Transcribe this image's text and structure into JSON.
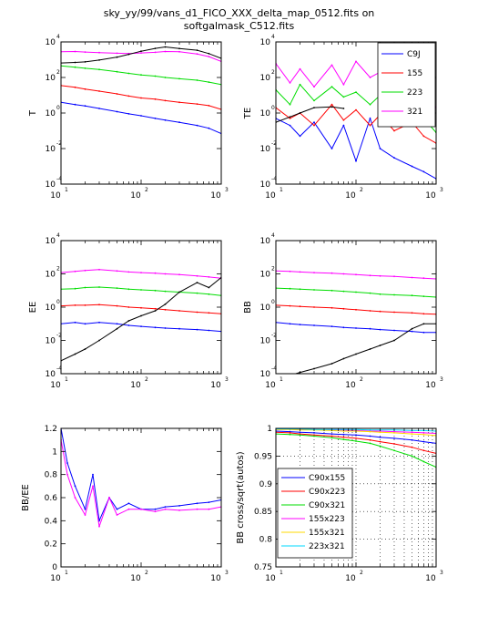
{
  "figure": {
    "title_line1": "sky_yy/99/vans_d1_FICO_XXX_delta_map_0512.fits on",
    "title_line2": "softgalmask_C512.fits"
  },
  "colors": {
    "c090": "#0000ff",
    "c155": "#ff0000",
    "c223": "#00dd00",
    "c321": "#ff00ff",
    "model": "#000000",
    "c155x321": "#ffd800",
    "c223x321": "#00d8ff"
  },
  "chart_data": [
    {
      "panel": "T",
      "type": "line",
      "ylabel": "T",
      "xscale": "log",
      "yscale": "log",
      "xlim": [
        10,
        1000
      ],
      "ylim": [
        0.0001,
        10000
      ],
      "xticks": [
        {
          "v": 10,
          "base": "10",
          "exp": "1"
        },
        {
          "v": 100,
          "base": "10",
          "exp": "2"
        },
        {
          "v": 1000,
          "base": "10",
          "exp": "3"
        }
      ],
      "yticks": [
        {
          "v": 0.0001,
          "base": "10",
          "exp": "-4"
        },
        {
          "v": 0.01,
          "base": "10",
          "exp": "-2"
        },
        {
          "v": 1,
          "base": "10",
          "exp": "0"
        },
        {
          "v": 100,
          "base": "10",
          "exp": "2"
        },
        {
          "v": 10000,
          "base": "10",
          "exp": "4"
        }
      ],
      "x": [
        10,
        15,
        20,
        30,
        50,
        70,
        100,
        150,
        200,
        300,
        500,
        700,
        1000
      ],
      "series": [
        {
          "color_key": "c090",
          "values": [
            4,
            3,
            2.5,
            1.8,
            1.2,
            0.9,
            0.7,
            0.5,
            0.4,
            0.3,
            0.2,
            0.14,
            0.07
          ]
        },
        {
          "color_key": "c155",
          "values": [
            35,
            28,
            22,
            17,
            12,
            9,
            7,
            6,
            5,
            4,
            3.2,
            2.6,
            1.6
          ]
        },
        {
          "color_key": "c223",
          "values": [
            450,
            380,
            330,
            280,
            210,
            170,
            140,
            120,
            100,
            85,
            70,
            55,
            40
          ]
        },
        {
          "color_key": "c321",
          "values": [
            2800,
            2900,
            2700,
            2500,
            2300,
            2200,
            2400,
            2600,
            2900,
            2800,
            2100,
            1500,
            800
          ]
        },
        {
          "color_key": "model",
          "values": [
            650,
            700,
            750,
            950,
            1400,
            2000,
            3000,
            4300,
            5200,
            4200,
            3400,
            2200,
            1200
          ]
        }
      ]
    },
    {
      "panel": "TE",
      "type": "line",
      "ylabel": "TE",
      "xscale": "log",
      "yscale": "log",
      "xlim": [
        10,
        1000
      ],
      "ylim": [
        0.0001,
        10000
      ],
      "xticks": [
        {
          "v": 10,
          "base": "10",
          "exp": "1"
        },
        {
          "v": 100,
          "base": "10",
          "exp": "2"
        },
        {
          "v": 1000,
          "base": "10",
          "exp": "3"
        }
      ],
      "yticks": [
        {
          "v": 0.0001,
          "base": "10",
          "exp": "-4"
        },
        {
          "v": 0.01,
          "base": "10",
          "exp": "-2"
        },
        {
          "v": 1,
          "base": "10",
          "exp": "0"
        },
        {
          "v": 100,
          "base": "10",
          "exp": "2"
        },
        {
          "v": 10000,
          "base": "10",
          "exp": "4"
        }
      ],
      "legend": {
        "position": "top-right",
        "labels": [
          "C9J",
          "155",
          "223",
          "321"
        ]
      },
      "x": [
        10,
        15,
        20,
        30,
        50,
        70,
        100,
        150,
        200,
        300,
        500,
        700,
        1000
      ],
      "series": [
        {
          "color_key": "c090",
          "values": [
            0.5,
            0.2,
            0.05,
            0.3,
            0.01,
            0.2,
            0.002,
            0.5,
            0.01,
            0.003,
            0.001,
            0.0005,
            0.0002
          ]
        },
        {
          "color_key": "c155",
          "values": [
            2,
            0.5,
            1,
            0.2,
            3,
            0.4,
            1.5,
            0.2,
            0.8,
            0.1,
            0.3,
            0.05,
            0.02
          ]
        },
        {
          "color_key": "c223",
          "values": [
            20,
            3,
            40,
            5,
            30,
            8,
            15,
            3,
            10,
            2,
            4,
            0.5,
            0.08
          ]
        },
        {
          "color_key": "c321",
          "values": [
            600,
            50,
            300,
            30,
            500,
            40,
            800,
            100,
            200,
            40,
            60,
            10,
            2
          ]
        },
        {
          "color_key": "model",
          "values": [
            0.3,
            0.6,
            1,
            2,
            2.2,
            1.8,
            null,
            null,
            null,
            null,
            null,
            null,
            null
          ]
        }
      ]
    },
    {
      "panel": "EE",
      "type": "line",
      "ylabel": "EE",
      "xscale": "log",
      "yscale": "log",
      "xlim": [
        10,
        1000
      ],
      "ylim": [
        0.0001,
        10000
      ],
      "xticks": [
        {
          "v": 10,
          "base": "10",
          "exp": "1"
        },
        {
          "v": 100,
          "base": "10",
          "exp": "2"
        },
        {
          "v": 1000,
          "base": "10",
          "exp": "3"
        }
      ],
      "yticks": [
        {
          "v": 0.0001,
          "base": "10",
          "exp": "-4"
        },
        {
          "v": 0.01,
          "base": "10",
          "exp": "-2"
        },
        {
          "v": 1,
          "base": "10",
          "exp": "0"
        },
        {
          "v": 100,
          "base": "10",
          "exp": "2"
        },
        {
          "v": 10000,
          "base": "10",
          "exp": "4"
        }
      ],
      "x": [
        10,
        15,
        20,
        30,
        50,
        70,
        100,
        150,
        200,
        300,
        500,
        700,
        1000
      ],
      "series": [
        {
          "color_key": "c090",
          "values": [
            0.1,
            0.12,
            0.1,
            0.12,
            0.1,
            0.08,
            0.07,
            0.06,
            0.055,
            0.05,
            0.045,
            0.04,
            0.035
          ]
        },
        {
          "color_key": "c155",
          "values": [
            1.2,
            1.3,
            1.3,
            1.4,
            1.2,
            1.0,
            0.9,
            0.8,
            0.7,
            0.6,
            0.5,
            0.45,
            0.4
          ]
        },
        {
          "color_key": "c223",
          "values": [
            12,
            13,
            15,
            16,
            14,
            12,
            11,
            10,
            9,
            8,
            7,
            6,
            5
          ]
        },
        {
          "color_key": "c321",
          "values": [
            120,
            140,
            160,
            180,
            150,
            130,
            120,
            110,
            100,
            90,
            75,
            65,
            55
          ]
        },
        {
          "color_key": "model",
          "values": [
            0.0006,
            0.0015,
            0.003,
            0.01,
            0.05,
            0.15,
            0.3,
            0.6,
            1.5,
            8,
            30,
            15,
            60
          ]
        }
      ]
    },
    {
      "panel": "BB",
      "type": "line",
      "ylabel": "BB",
      "xscale": "log",
      "yscale": "log",
      "xlim": [
        10,
        1000
      ],
      "ylim": [
        0.0001,
        10000
      ],
      "xticks": [
        {
          "v": 10,
          "base": "10",
          "exp": "1"
        },
        {
          "v": 100,
          "base": "10",
          "exp": "2"
        },
        {
          "v": 1000,
          "base": "10",
          "exp": "3"
        }
      ],
      "yticks": [
        {
          "v": 0.0001,
          "base": "10",
          "exp": "-4"
        },
        {
          "v": 0.01,
          "base": "10",
          "exp": "-2"
        },
        {
          "v": 1,
          "base": "10",
          "exp": "0"
        },
        {
          "v": 100,
          "base": "10",
          "exp": "2"
        },
        {
          "v": 10000,
          "base": "10",
          "exp": "4"
        }
      ],
      "x": [
        10,
        15,
        20,
        30,
        50,
        70,
        100,
        150,
        200,
        300,
        500,
        700,
        1000
      ],
      "series": [
        {
          "color_key": "c090",
          "values": [
            0.12,
            0.1,
            0.09,
            0.08,
            0.07,
            0.06,
            0.055,
            0.05,
            0.045,
            0.04,
            0.035,
            0.03,
            0.03
          ]
        },
        {
          "color_key": "c155",
          "values": [
            1.3,
            1.2,
            1.1,
            1.0,
            0.9,
            0.8,
            0.7,
            0.6,
            0.55,
            0.5,
            0.45,
            0.4,
            0.38
          ]
        },
        {
          "color_key": "c223",
          "values": [
            14,
            13,
            12,
            11,
            10,
            9,
            8,
            7,
            6,
            5.5,
            5,
            4.5,
            4
          ]
        },
        {
          "color_key": "c321",
          "values": [
            150,
            140,
            130,
            120,
            110,
            100,
            90,
            80,
            75,
            70,
            60,
            55,
            50
          ]
        },
        {
          "color_key": "model",
          "values": [
            null,
            8e-05,
            0.00012,
            0.0002,
            0.0004,
            0.0008,
            0.0015,
            0.003,
            0.005,
            0.01,
            0.05,
            0.1,
            0.1
          ]
        }
      ]
    },
    {
      "panel": "BB/EE",
      "type": "line",
      "ylabel": "BB/EE",
      "xscale": "log",
      "yscale": "linear",
      "xlim": [
        10,
        1000
      ],
      "ylim": [
        0,
        1.2
      ],
      "xticks": [
        {
          "v": 10,
          "base": "10",
          "exp": "1"
        },
        {
          "v": 100,
          "base": "10",
          "exp": "2"
        },
        {
          "v": 1000,
          "base": "10",
          "exp": "3"
        }
      ],
      "yticks": [
        {
          "v": 0,
          "text": "0"
        },
        {
          "v": 0.2,
          "text": "0.2"
        },
        {
          "v": 0.4,
          "text": "0.4"
        },
        {
          "v": 0.6,
          "text": "0.6"
        },
        {
          "v": 0.8,
          "text": "0.8"
        },
        {
          "v": 1,
          "text": "1"
        },
        {
          "v": 1.2,
          "text": "1.2"
        }
      ],
      "x": [
        10,
        12,
        15,
        20,
        25,
        30,
        40,
        50,
        70,
        100,
        150,
        200,
        300,
        500,
        700,
        1000
      ],
      "series": [
        {
          "color_key": "c090",
          "values": [
            1.2,
            0.9,
            0.7,
            0.5,
            0.8,
            0.4,
            0.6,
            0.5,
            0.55,
            0.5,
            0.5,
            0.52,
            0.53,
            0.55,
            0.56,
            0.58
          ]
        },
        {
          "color_key": "c321",
          "values": [
            1.1,
            0.8,
            0.6,
            0.45,
            0.7,
            0.35,
            0.6,
            0.45,
            0.5,
            0.5,
            0.48,
            0.5,
            0.49,
            0.5,
            0.5,
            0.52
          ]
        }
      ]
    },
    {
      "panel": "BB cross",
      "type": "line",
      "ylabel": "BB cross/sqrt(autos)",
      "xscale": "log",
      "yscale": "linear",
      "xlim": [
        10,
        1000
      ],
      "ylim": [
        0.75,
        1.0
      ],
      "xticks": [
        {
          "v": 10,
          "base": "10",
          "exp": "1"
        },
        {
          "v": 100,
          "base": "10",
          "exp": "2"
        },
        {
          "v": 1000,
          "base": "10",
          "exp": "3"
        }
      ],
      "yticks": [
        {
          "v": 0.75,
          "text": "0.75"
        },
        {
          "v": 0.8,
          "text": "0.8"
        },
        {
          "v": 0.85,
          "text": "0.85"
        },
        {
          "v": 0.9,
          "text": "0.9"
        },
        {
          "v": 0.95,
          "text": "0.95"
        },
        {
          "v": 1.0,
          "text": "1"
        }
      ],
      "grid": "dotted",
      "legend": {
        "position": "lower-left",
        "labels": [
          "C90x155",
          "C90x223",
          "C90x321",
          "155x223",
          "155x321",
          "223x321"
        ]
      },
      "x": [
        10,
        15,
        20,
        30,
        50,
        70,
        100,
        150,
        200,
        300,
        500,
        700,
        1000
      ],
      "series": [
        {
          "color_key": "c090",
          "values": [
            0.995,
            0.994,
            0.993,
            0.992,
            0.99,
            0.989,
            0.988,
            0.986,
            0.984,
            0.982,
            0.979,
            0.976,
            0.973
          ]
        },
        {
          "color_key": "c155",
          "values": [
            0.993,
            0.992,
            0.99,
            0.988,
            0.986,
            0.984,
            0.982,
            0.979,
            0.976,
            0.972,
            0.966,
            0.96,
            0.955
          ]
        },
        {
          "color_key": "c223",
          "values": [
            0.99,
            0.989,
            0.988,
            0.986,
            0.983,
            0.98,
            0.977,
            0.973,
            0.968,
            0.96,
            0.95,
            0.94,
            0.93
          ]
        },
        {
          "color_key": "c321",
          "values": [
            0.999,
            0.999,
            0.998,
            0.998,
            0.997,
            0.997,
            0.996,
            0.995,
            0.995,
            0.994,
            0.993,
            0.992,
            0.991
          ]
        },
        {
          "color_key": "c155x321",
          "values": [
            0.998,
            0.998,
            0.997,
            0.997,
            0.996,
            0.995,
            0.995,
            0.994,
            0.993,
            0.992,
            0.99,
            0.989,
            0.987
          ]
        },
        {
          "color_key": "c223x321",
          "values": [
            0.999,
            0.999,
            0.999,
            0.998,
            0.998,
            0.998,
            0.998,
            0.997,
            0.997,
            0.997,
            0.996,
            0.996,
            0.995
          ]
        }
      ]
    }
  ]
}
